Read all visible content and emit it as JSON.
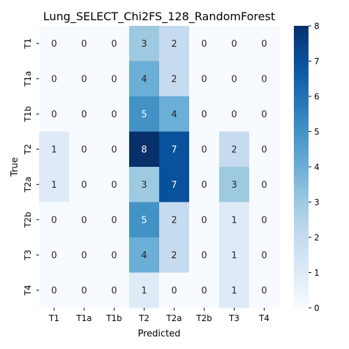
{
  "chart_data": {
    "type": "heatmap",
    "title": "Lung_SELECT_Chi2FS_128_RandomForest",
    "xlabel": "Predicted",
    "ylabel": "True",
    "x_categories": [
      "T1",
      "T1a",
      "T1b",
      "T2",
      "T2a",
      "T2b",
      "T3",
      "T4"
    ],
    "y_categories": [
      "T1",
      "T1a",
      "T1b",
      "T2",
      "T2a",
      "T2b",
      "T3",
      "T4"
    ],
    "values": [
      [
        0,
        0,
        0,
        3,
        2,
        0,
        0,
        0
      ],
      [
        0,
        0,
        0,
        4,
        2,
        0,
        0,
        0
      ],
      [
        0,
        0,
        0,
        5,
        4,
        0,
        0,
        0
      ],
      [
        1,
        0,
        0,
        8,
        7,
        0,
        2,
        0
      ],
      [
        1,
        0,
        0,
        3,
        7,
        0,
        3,
        0
      ],
      [
        0,
        0,
        0,
        5,
        2,
        0,
        1,
        0
      ],
      [
        0,
        0,
        0,
        4,
        2,
        0,
        1,
        0
      ],
      [
        0,
        0,
        0,
        1,
        0,
        0,
        1,
        0
      ]
    ],
    "colormap": "Blues",
    "value_range": [
      0,
      8
    ],
    "colorbar_ticks": [
      0,
      1,
      2,
      3,
      4,
      5,
      6,
      7,
      8
    ],
    "grid": false
  }
}
